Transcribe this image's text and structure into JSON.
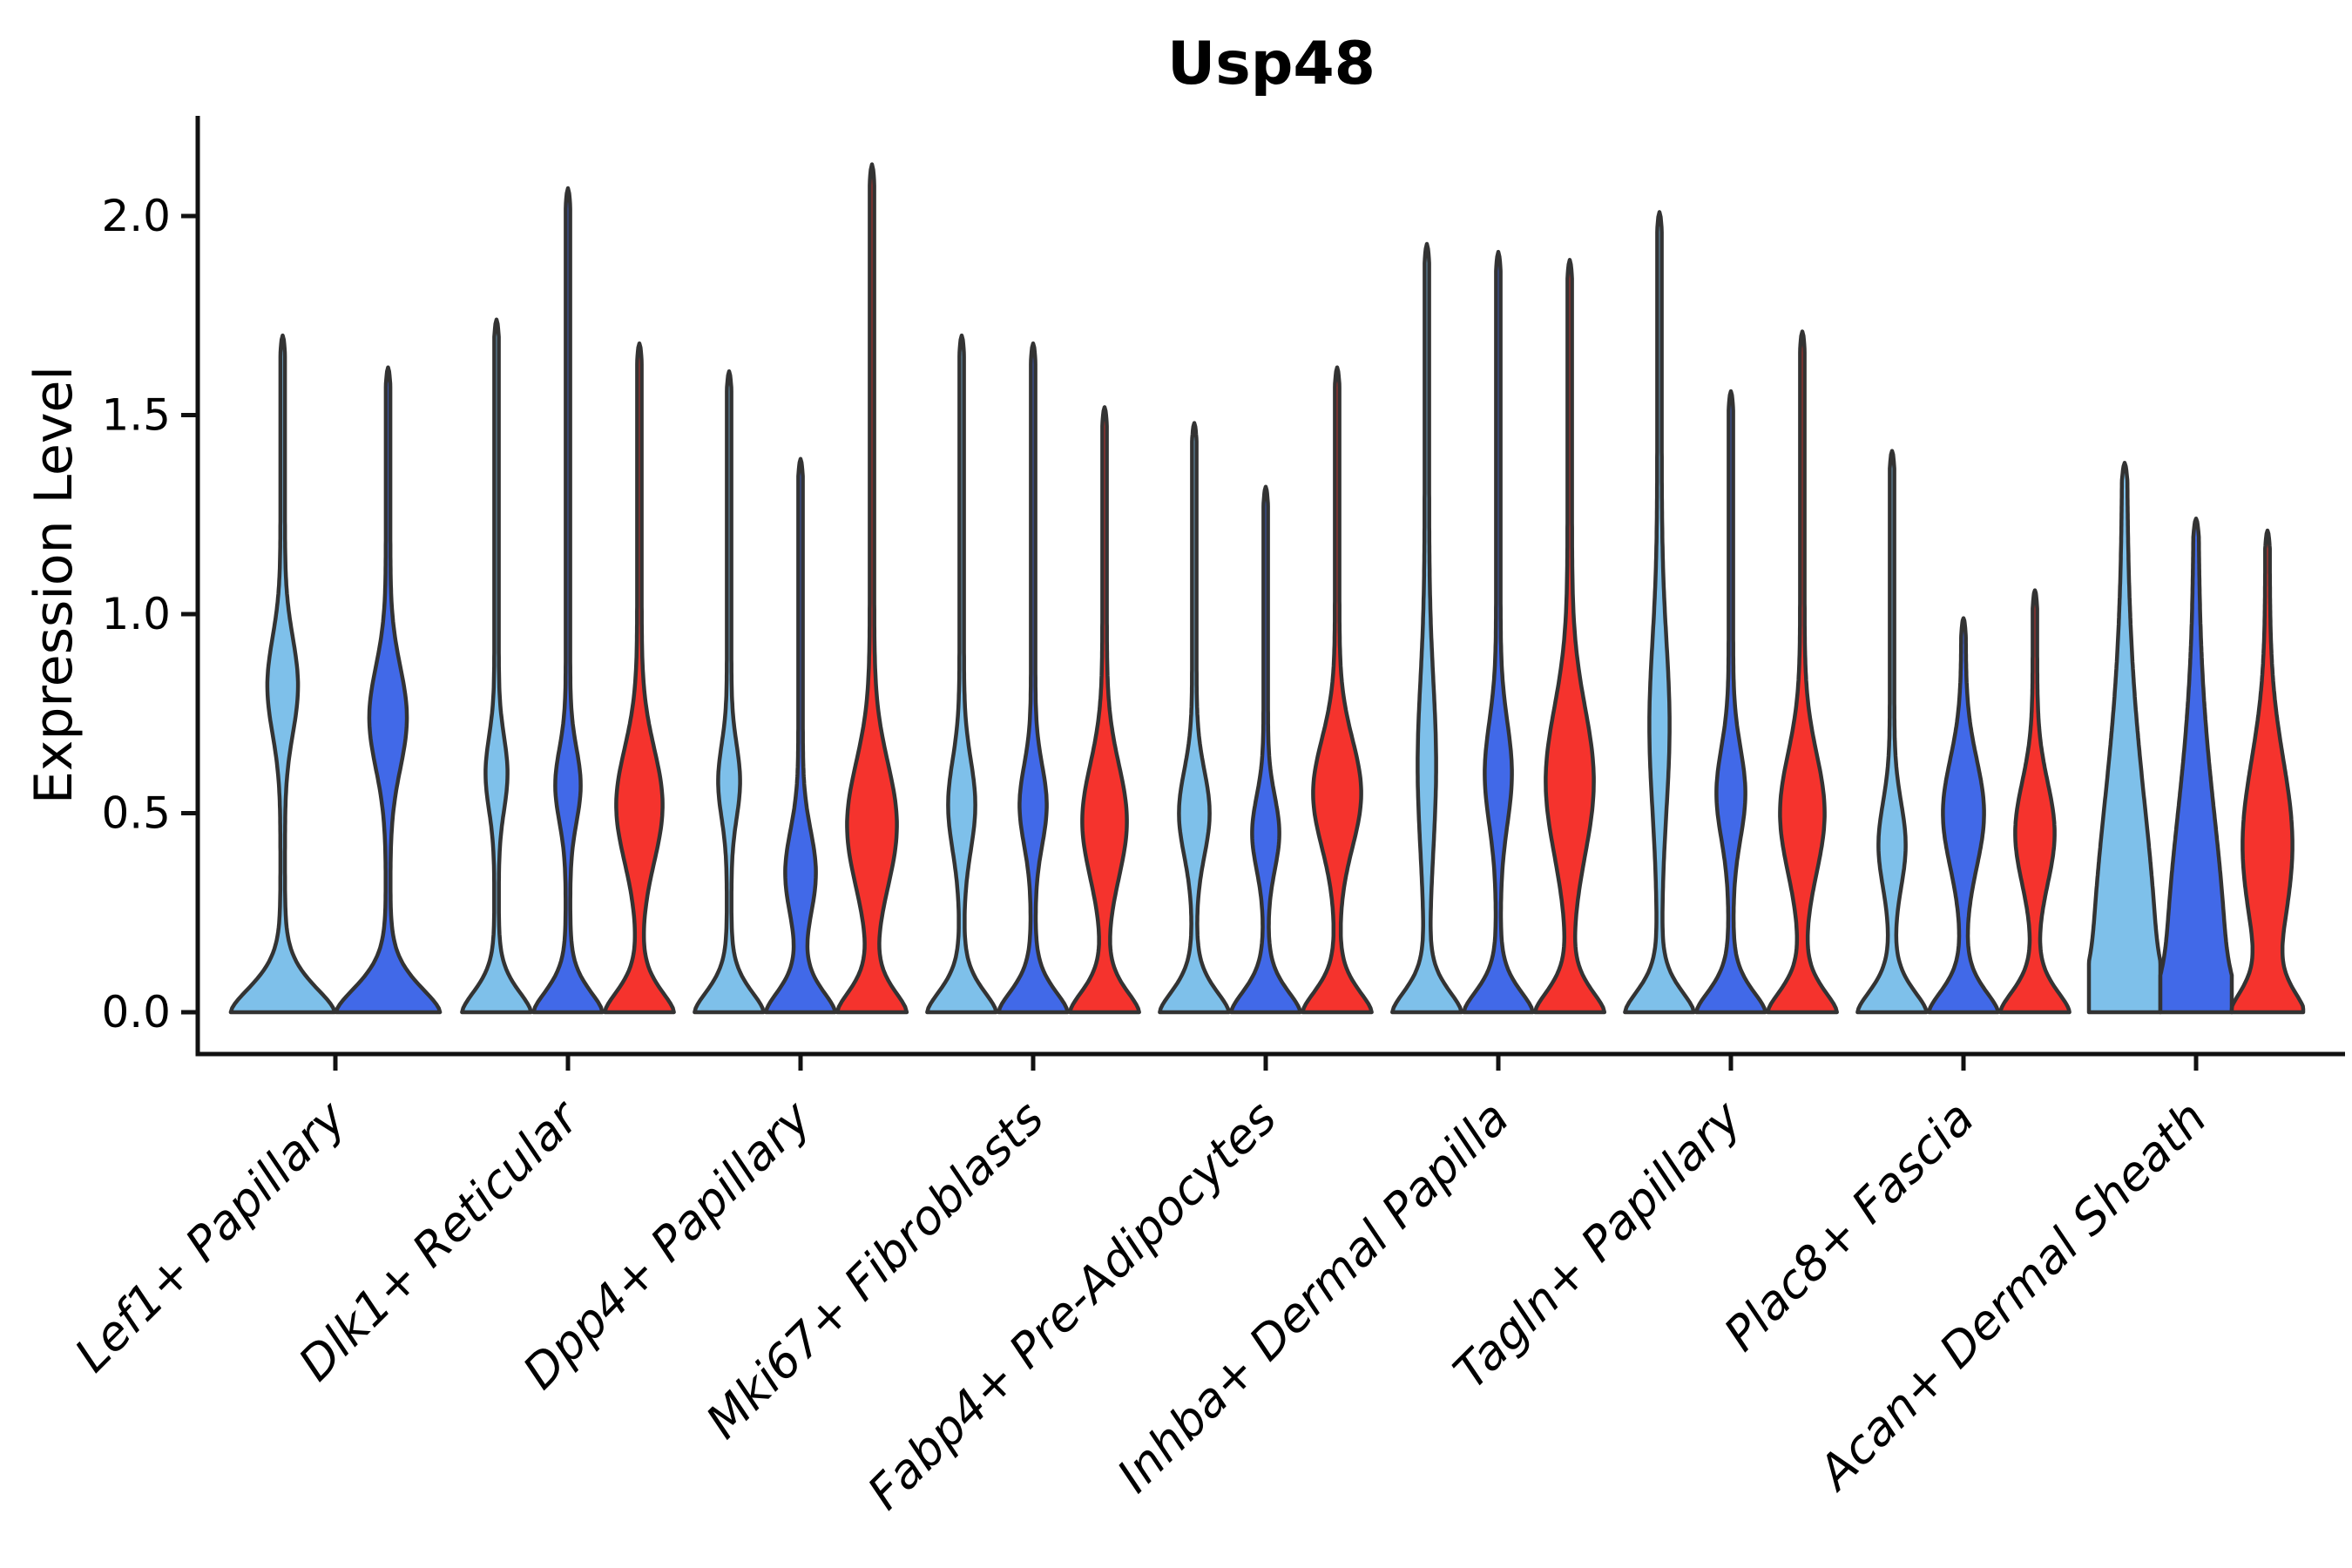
{
  "title": "Usp48",
  "y_axis": {
    "label": "Expression Level",
    "tick_labels": [
      "0.0",
      "0.5",
      "1.0",
      "1.5",
      "2.0"
    ],
    "tick_values": [
      0.0,
      0.5,
      1.0,
      1.5,
      2.0
    ]
  },
  "style": {
    "background": "#ffffff",
    "axis_color": "#111111",
    "outline_color": "#333333",
    "light_blue": "#7EC0EA",
    "dark_blue": "#4169E8",
    "red": "#F5332D",
    "text_color": "#000000"
  },
  "chart_data": {
    "type": "violin",
    "title": "Usp48",
    "xlabel": "",
    "ylabel": "Expression Level",
    "ylim": [
      -0.1,
      2.3
    ],
    "grid": false,
    "legend": "none",
    "categories": [
      "Lef1+ Papillary",
      "Dlk1+ Reticular",
      "Dpp4+ Papillary",
      "Mki67+ Fibroblasts",
      "Fabp4+ Pre-Adipocytes",
      "Inhba+ Dermal Papilla",
      "Tagln+ Papillary",
      "Plac8+ Fascia",
      "Acan+ Dermal Sheath"
    ],
    "series": [
      {
        "name": "light-blue",
        "color": "#7EC0EA",
        "max_values": [
          1.7,
          1.74,
          1.61,
          1.7,
          1.48,
          1.93,
          2.01,
          1.41,
          1.38
        ],
        "violins": [
          {
            "max": 1.7,
            "c": 0.82,
            "s": 0.17,
            "w": 15,
            "baseW": 57,
            "baseB": 0.1
          },
          {
            "max": 1.74,
            "c": 0.6,
            "s": 0.13,
            "w": 10,
            "baseW": 37
          },
          {
            "max": 1.61,
            "c": 0.58,
            "s": 0.13,
            "w": 10,
            "baseW": 37
          },
          {
            "max": 1.7,
            "c": 0.52,
            "s": 0.16,
            "w": 13,
            "baseW": 37
          },
          {
            "max": 1.48,
            "c": 0.5,
            "s": 0.15,
            "w": 15,
            "baseW": 37
          },
          {
            "max": 1.93,
            "c": 0.62,
            "s": 0.3,
            "w": 8,
            "baseW": 37
          },
          {
            "max": 2.01,
            "c": 0.72,
            "s": 0.3,
            "w": 9,
            "baseW": 37
          },
          {
            "max": 1.41,
            "c": 0.42,
            "s": 0.15,
            "w": 13,
            "baseW": 37
          },
          {
            "max": 1.38,
            "c": 0.08,
            "s": 0.62,
            "w": 34,
            "baseW": 20,
            "baseB": 0.1
          }
        ]
      },
      {
        "name": "dark-blue",
        "color": "#4169E8",
        "max_values": [
          1.62,
          2.07,
          1.39,
          1.68,
          1.32,
          1.91,
          1.56,
          0.99,
          1.24
        ],
        "violins": [
          {
            "max": 1.62,
            "c": 0.74,
            "s": 0.18,
            "w": 19,
            "baseW": 57,
            "baseB": 0.1
          },
          {
            "max": 2.07,
            "c": 0.57,
            "s": 0.13,
            "w": 12,
            "baseW": 37
          },
          {
            "max": 1.39,
            "c": 0.35,
            "s": 0.15,
            "w": 15,
            "baseW": 37
          },
          {
            "max": 1.68,
            "c": 0.52,
            "s": 0.14,
            "w": 13,
            "baseW": 37
          },
          {
            "max": 1.32,
            "c": 0.45,
            "s": 0.13,
            "w": 13,
            "baseW": 37
          },
          {
            "max": 1.91,
            "c": 0.6,
            "s": 0.18,
            "w": 13,
            "baseW": 37
          },
          {
            "max": 1.56,
            "c": 0.55,
            "s": 0.16,
            "w": 14,
            "baseW": 37
          },
          {
            "max": 0.99,
            "c": 0.5,
            "s": 0.19,
            "w": 21,
            "baseW": 37
          },
          {
            "max": 1.24,
            "c": 0.1,
            "s": 0.55,
            "w": 31,
            "baseW": 18,
            "baseB": 0.1
          }
        ]
      },
      {
        "name": "red",
        "color": "#F5332D",
        "max_values": [
          null,
          1.68,
          2.13,
          1.52,
          1.62,
          1.89,
          1.71,
          1.06,
          1.21
        ],
        "violins": [
          null,
          {
            "max": 1.68,
            "c": 0.52,
            "s": 0.2,
            "w": 24,
            "baseW": 37
          },
          {
            "max": 2.13,
            "c": 0.47,
            "s": 0.22,
            "w": 26,
            "baseW": 37
          },
          {
            "max": 1.52,
            "c": 0.48,
            "s": 0.2,
            "w": 23,
            "baseW": 37
          },
          {
            "max": 1.62,
            "c": 0.55,
            "s": 0.19,
            "w": 25,
            "baseW": 37
          },
          {
            "max": 1.89,
            "c": 0.58,
            "s": 0.26,
            "w": 25,
            "baseW": 37
          },
          {
            "max": 1.71,
            "c": 0.5,
            "s": 0.21,
            "w": 23,
            "baseW": 37
          },
          {
            "max": 1.06,
            "c": 0.45,
            "s": 0.18,
            "w": 20,
            "baseW": 37
          },
          {
            "max": 1.21,
            "c": 0.42,
            "s": 0.3,
            "w": 26,
            "baseW": 36
          }
        ]
      }
    ]
  }
}
